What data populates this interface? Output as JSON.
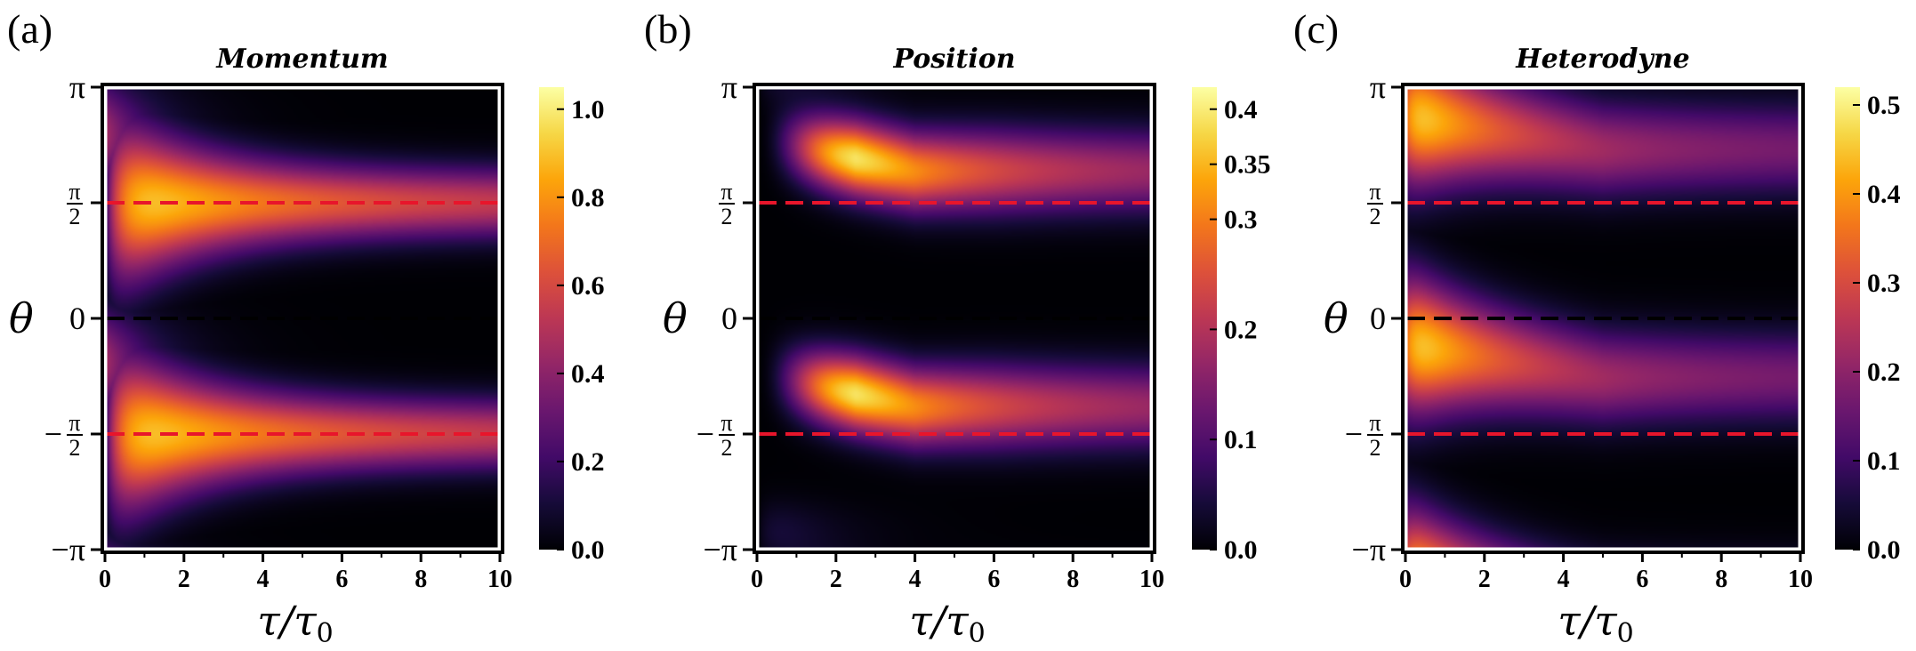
{
  "colors": {
    "red_dash": "#e8152b",
    "black_dash": "#000000",
    "frame": "#000000",
    "background": "#ffffff"
  },
  "chart_data": [
    {
      "type": "heatmap",
      "panel_label": "(a)",
      "title": "Momentum",
      "xlabel": "τ/τ0",
      "ylabel": "θ",
      "xlim": [
        0,
        10
      ],
      "ylim": [
        -3.14159,
        3.14159
      ],
      "x_ticks": [
        "0",
        "2",
        "4",
        "6",
        "8",
        "10"
      ],
      "y_ticks": [
        {
          "label": "π",
          "value": 3.14159
        },
        {
          "label": "π/2",
          "value": 1.5708
        },
        {
          "label": "0",
          "value": 0
        },
        {
          "label": "−π/2",
          "value": -1.5708
        },
        {
          "label": "−π",
          "value": -3.14159
        }
      ],
      "colorbar_ticks": [
        "0.0",
        "0.2",
        "0.4",
        "0.6",
        "0.8",
        "1.0"
      ],
      "colorbar_range": [
        0,
        1.05
      ],
      "colormap": "inferno",
      "lines": [
        {
          "y": 1.5708,
          "style": "dashed",
          "color": "red"
        },
        {
          "y": 0,
          "style": "dashed",
          "color": "black"
        },
        {
          "y": -1.5708,
          "style": "dashed",
          "color": "red"
        }
      ],
      "features": [
        {
          "description": "bright ridge along theta = pi/2 decaying with tau",
          "center_theta": 1.5708,
          "peak": 1.0
        },
        {
          "description": "bright ridge along theta = -pi/2 decaying with tau",
          "center_theta": -1.5708,
          "peak": 1.0
        }
      ]
    },
    {
      "type": "heatmap",
      "panel_label": "(b)",
      "title": "Position",
      "xlabel": "τ/τ0",
      "ylabel": "θ",
      "xlim": [
        0,
        10
      ],
      "ylim": [
        -3.14159,
        3.14159
      ],
      "x_ticks": [
        "0",
        "2",
        "4",
        "6",
        "8",
        "10"
      ],
      "y_ticks": [
        {
          "label": "π",
          "value": 3.14159
        },
        {
          "label": "π/2",
          "value": 1.5708
        },
        {
          "label": "0",
          "value": 0
        },
        {
          "label": "−π/2",
          "value": -1.5708
        },
        {
          "label": "−π",
          "value": -3.14159
        }
      ],
      "colorbar_ticks": [
        "0.0",
        "0.1",
        "0.2",
        "0.3",
        "0.35",
        "0.4"
      ],
      "colorbar_ticks_values": [
        0.0,
        0.1,
        0.2,
        0.3,
        0.35,
        0.4
      ],
      "colorbar_range": [
        0,
        0.42
      ],
      "colormap": "inferno",
      "lines": [
        {
          "y": 1.5708,
          "style": "dashed",
          "color": "red"
        },
        {
          "y": 0,
          "style": "dashed",
          "color": "black"
        },
        {
          "y": -1.5708,
          "style": "dashed",
          "color": "red"
        }
      ],
      "features": [
        {
          "description": "bright lobe peaking near tau = 2.5, theta ~ 2.2",
          "center_theta": 2.2,
          "peak": 0.4
        },
        {
          "description": "bright lobe peaking near tau = 2.5, theta ~ -0.9",
          "center_theta": -0.9,
          "peak": 0.4
        }
      ]
    },
    {
      "type": "heatmap",
      "panel_label": "(c)",
      "title": "Heterodyne",
      "xlabel": "τ/τ0",
      "ylabel": "θ",
      "xlim": [
        0,
        10
      ],
      "ylim": [
        -3.14159,
        3.14159
      ],
      "x_ticks": [
        "0",
        "2",
        "4",
        "6",
        "8",
        "10"
      ],
      "y_ticks": [
        {
          "label": "π",
          "value": 3.14159
        },
        {
          "label": "π/2",
          "value": 1.5708
        },
        {
          "label": "0",
          "value": 0
        },
        {
          "label": "−π/2",
          "value": -1.5708
        },
        {
          "label": "−π",
          "value": -3.14159
        }
      ],
      "colorbar_ticks": [
        "0.0",
        "0.1",
        "0.2",
        "0.3",
        "0.4",
        "0.5"
      ],
      "colorbar_range": [
        0,
        0.52
      ],
      "colormap": "inferno",
      "lines": [
        {
          "y": 1.5708,
          "style": "dashed",
          "color": "red"
        },
        {
          "y": 0,
          "style": "dashed",
          "color": "black"
        },
        {
          "y": -1.5708,
          "style": "dashed",
          "color": "red"
        }
      ],
      "features": [
        {
          "description": "bright band near theta ~ 2.5 decaying with tau",
          "center_theta": 2.5,
          "peak": 0.5
        },
        {
          "description": "bright band near theta ~ -0.6 decaying with tau",
          "center_theta": -0.6,
          "peak": 0.5
        }
      ]
    }
  ]
}
